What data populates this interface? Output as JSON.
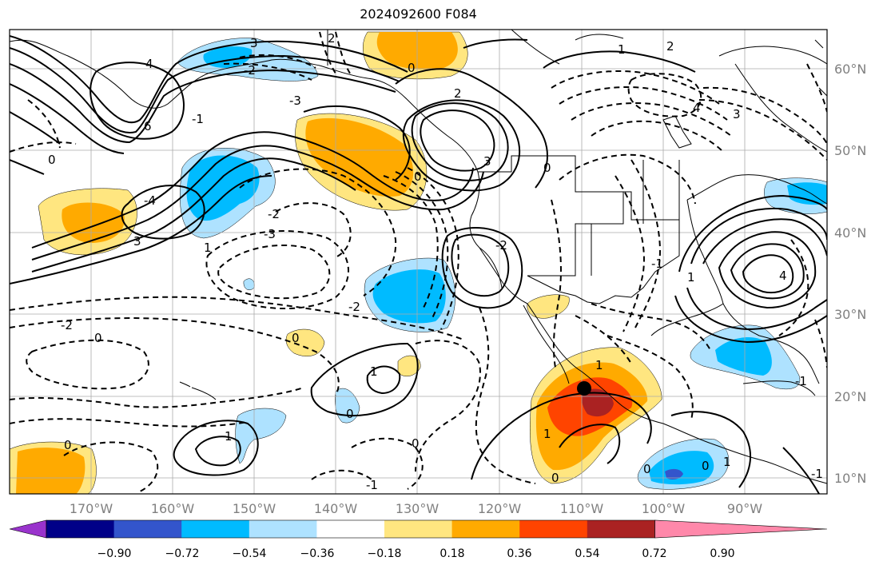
{
  "title": "2024092600 F084",
  "lon_labels": [
    "170°W",
    "160°W",
    "150°W",
    "140°W",
    "130°W",
    "120°W",
    "110°W",
    "100°W",
    "90°W"
  ],
  "lat_labels": [
    "60°N",
    "50°N",
    "40°N",
    "30°N",
    "20°N",
    "10°N"
  ],
  "colorbar": {
    "ticks": [
      "−0.90",
      "−0.72",
      "−0.54",
      "−0.36",
      "−0.18",
      "0.18",
      "0.36",
      "0.54",
      "0.72",
      "0.90"
    ],
    "colors": [
      "#9933cc",
      "#000088",
      "#3355cc",
      "#00bbff",
      "#aee2ff",
      "#ffffff",
      "#ffe680",
      "#ffaa00",
      "#ff4400",
      "#aa2222",
      "#ff88aa"
    ]
  },
  "contour_labels": [
    "3",
    "4",
    "6",
    "2",
    "0",
    "1",
    "-2",
    "-3",
    "-1",
    "-4",
    "0",
    "2",
    "3",
    "1",
    "0",
    "-2",
    "-3",
    "-2",
    "4",
    "3",
    "0",
    "2",
    "-2",
    "3",
    "4",
    "1",
    "-2",
    "-1",
    "1",
    "-1",
    "0",
    "0",
    "0",
    "1",
    "0",
    "1",
    "0",
    "0",
    "1",
    "-1",
    "-1",
    "0",
    "1",
    "0"
  ],
  "marker": "storm-center-dot"
}
